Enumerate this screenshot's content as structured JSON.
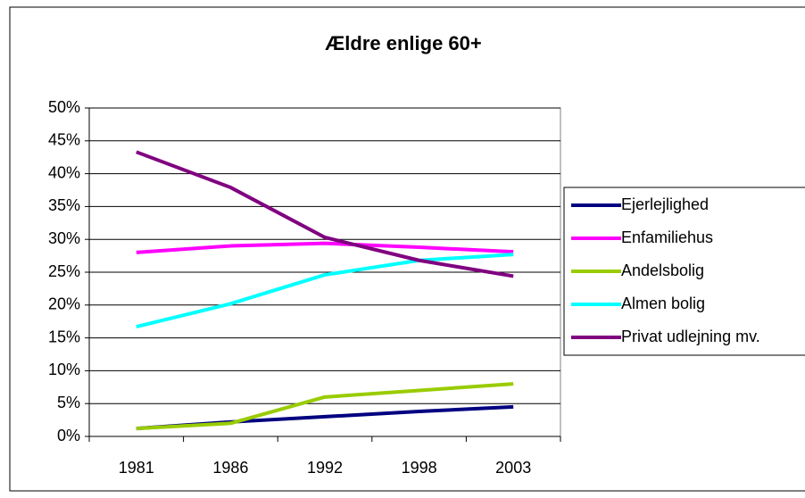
{
  "chart_data": {
    "type": "line",
    "title": "Ældre enlige 60+",
    "categories": [
      "1981",
      "1986",
      "1992",
      "1998",
      "2003"
    ],
    "series": [
      {
        "name": "Ejerlejlighed",
        "color": "#000080",
        "values": [
          1.2,
          2.2,
          3.0,
          3.8,
          4.5
        ]
      },
      {
        "name": "Enfamiliehus",
        "color": "#ff00ff",
        "values": [
          28.0,
          29.0,
          29.4,
          28.8,
          28.1
        ]
      },
      {
        "name": "Andelsbolig",
        "color": "#99cc00",
        "values": [
          1.2,
          2.0,
          6.0,
          7.0,
          8.0
        ]
      },
      {
        "name": "Almen bolig",
        "color": "#00ffff",
        "values": [
          16.7,
          20.2,
          24.6,
          26.8,
          27.7
        ]
      },
      {
        "name": "Privat udlejning mv.",
        "color": "#800080",
        "values": [
          43.3,
          37.9,
          30.3,
          26.8,
          24.4
        ]
      }
    ],
    "ylim": [
      0,
      50
    ],
    "yticks": [
      {
        "value": 0,
        "label": "0%"
      },
      {
        "value": 5,
        "label": "5%"
      },
      {
        "value": 10,
        "label": "10%"
      },
      {
        "value": 15,
        "label": "15%"
      },
      {
        "value": 20,
        "label": "20%"
      },
      {
        "value": 25,
        "label": "25%"
      },
      {
        "value": 30,
        "label": "30%"
      },
      {
        "value": 35,
        "label": "35%"
      },
      {
        "value": 40,
        "label": "40%"
      },
      {
        "value": 45,
        "label": "45%"
      },
      {
        "value": 50,
        "label": "50%"
      }
    ],
    "grid": true,
    "legend": "right"
  }
}
